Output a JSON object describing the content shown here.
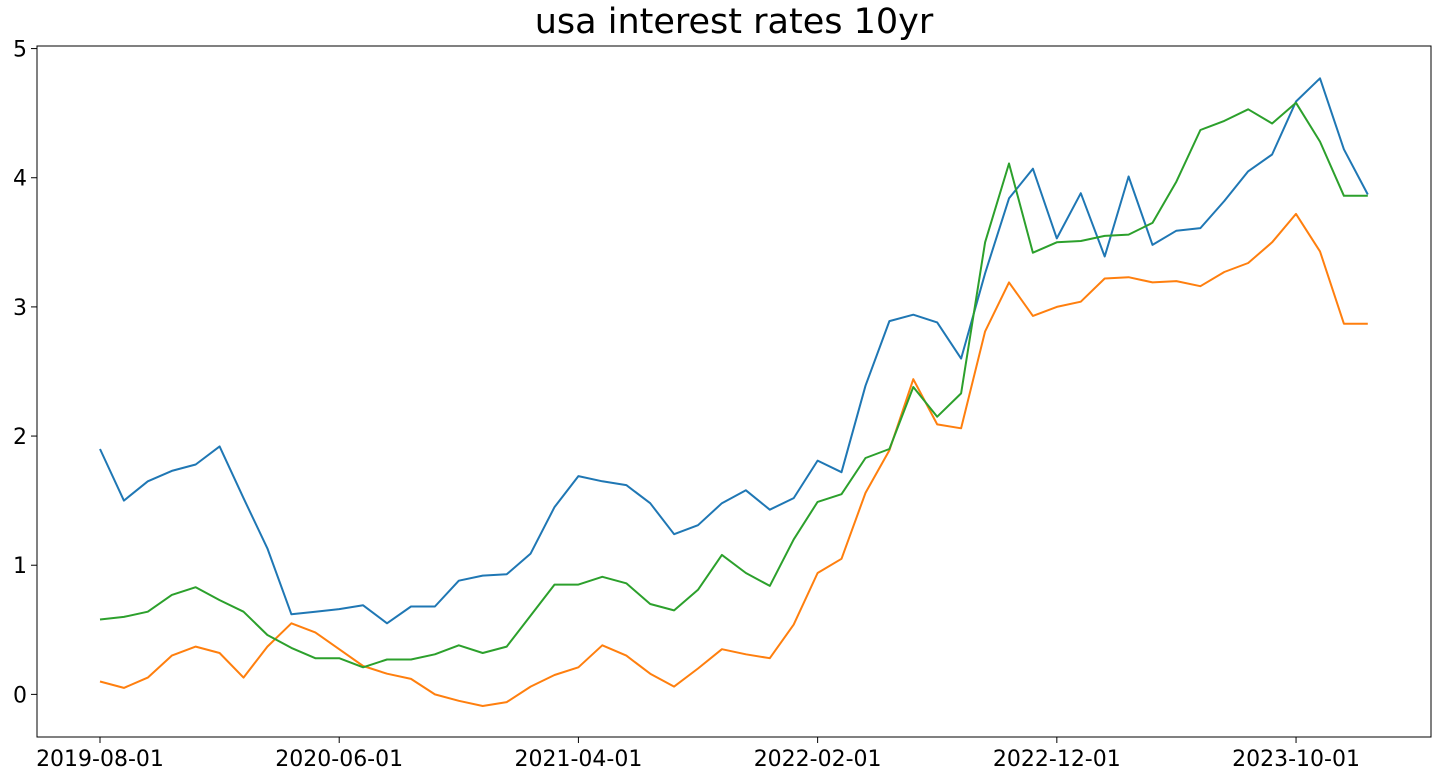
{
  "chart_data": {
    "type": "line",
    "title": "usa interest rates 10yr",
    "xlabel": "",
    "ylabel": "",
    "x": [
      "2019-08-01",
      "2019-09-01",
      "2019-10-01",
      "2019-11-01",
      "2019-12-01",
      "2020-01-01",
      "2020-02-01",
      "2020-03-01",
      "2020-04-01",
      "2020-05-01",
      "2020-06-01",
      "2020-07-01",
      "2020-08-01",
      "2020-09-01",
      "2020-10-01",
      "2020-11-01",
      "2020-12-01",
      "2021-01-01",
      "2021-02-01",
      "2021-03-01",
      "2021-04-01",
      "2021-05-01",
      "2021-06-01",
      "2021-07-01",
      "2021-08-01",
      "2021-09-01",
      "2021-10-01",
      "2021-11-01",
      "2021-12-01",
      "2022-01-01",
      "2022-02-01",
      "2022-03-01",
      "2022-04-01",
      "2022-05-01",
      "2022-06-01",
      "2022-07-01",
      "2022-08-01",
      "2022-09-01",
      "2022-10-01",
      "2022-11-01",
      "2022-12-01",
      "2023-01-01",
      "2023-02-01",
      "2023-03-01",
      "2023-04-01",
      "2023-05-01",
      "2023-06-01",
      "2023-07-01",
      "2023-08-01",
      "2023-09-01",
      "2023-10-01",
      "2023-11-01",
      "2023-12-01",
      "2024-01-01"
    ],
    "x_ticks": [
      "2019-08-01",
      "2020-06-01",
      "2021-04-01",
      "2022-02-01",
      "2022-12-01",
      "2023-10-01"
    ],
    "y_ticks": [
      0,
      1,
      2,
      3,
      4,
      5
    ],
    "ylim": [
      -0.33,
      5.02
    ],
    "grid": false,
    "series": [
      {
        "color": "#1f77b4",
        "values": [
          1.9,
          1.5,
          1.65,
          1.73,
          1.78,
          1.92,
          1.52,
          1.13,
          0.62,
          0.64,
          0.66,
          0.69,
          0.55,
          0.68,
          0.68,
          0.88,
          0.92,
          0.93,
          1.09,
          1.45,
          1.69,
          1.65,
          1.62,
          1.48,
          1.24,
          1.31,
          1.48,
          1.58,
          1.43,
          1.52,
          1.81,
          1.72,
          2.39,
          2.89,
          2.94,
          2.88,
          2.6,
          3.26,
          3.84,
          4.07,
          3.53,
          3.88,
          3.39,
          4.01,
          3.48,
          3.59,
          3.61,
          3.82,
          4.05,
          4.18,
          4.59,
          4.77,
          4.22,
          3.87
        ]
      },
      {
        "color": "#ff7f0e",
        "values": [
          0.1,
          0.05,
          0.13,
          0.3,
          0.37,
          0.32,
          0.13,
          0.37,
          0.55,
          0.48,
          0.35,
          0.22,
          0.16,
          0.12,
          0.0,
          -0.05,
          -0.09,
          -0.06,
          0.06,
          0.15,
          0.21,
          0.38,
          0.3,
          0.16,
          0.06,
          0.2,
          0.35,
          0.31,
          0.28,
          0.54,
          0.94,
          1.05,
          1.56,
          1.89,
          2.44,
          2.09,
          2.06,
          2.81,
          3.19,
          2.93,
          3.0,
          3.04,
          3.22,
          3.23,
          3.19,
          3.2,
          3.16,
          3.27,
          3.34,
          3.5,
          3.72,
          3.43,
          2.87,
          2.87
        ]
      },
      {
        "color": "#2ca02c",
        "values": [
          0.58,
          0.6,
          0.64,
          0.77,
          0.83,
          0.73,
          0.64,
          0.46,
          0.36,
          0.28,
          0.28,
          0.21,
          0.27,
          0.27,
          0.31,
          0.38,
          0.32,
          0.37,
          0.61,
          0.85,
          0.85,
          0.91,
          0.86,
          0.7,
          0.65,
          0.81,
          1.08,
          0.94,
          0.84,
          1.2,
          1.49,
          1.55,
          1.83,
          1.9,
          2.38,
          2.15,
          2.33,
          3.5,
          4.11,
          3.42,
          3.5,
          3.51,
          3.55,
          3.56,
          3.65,
          3.97,
          4.37,
          4.44,
          4.53,
          4.42,
          4.58,
          4.28,
          3.86,
          3.86
        ]
      }
    ]
  }
}
